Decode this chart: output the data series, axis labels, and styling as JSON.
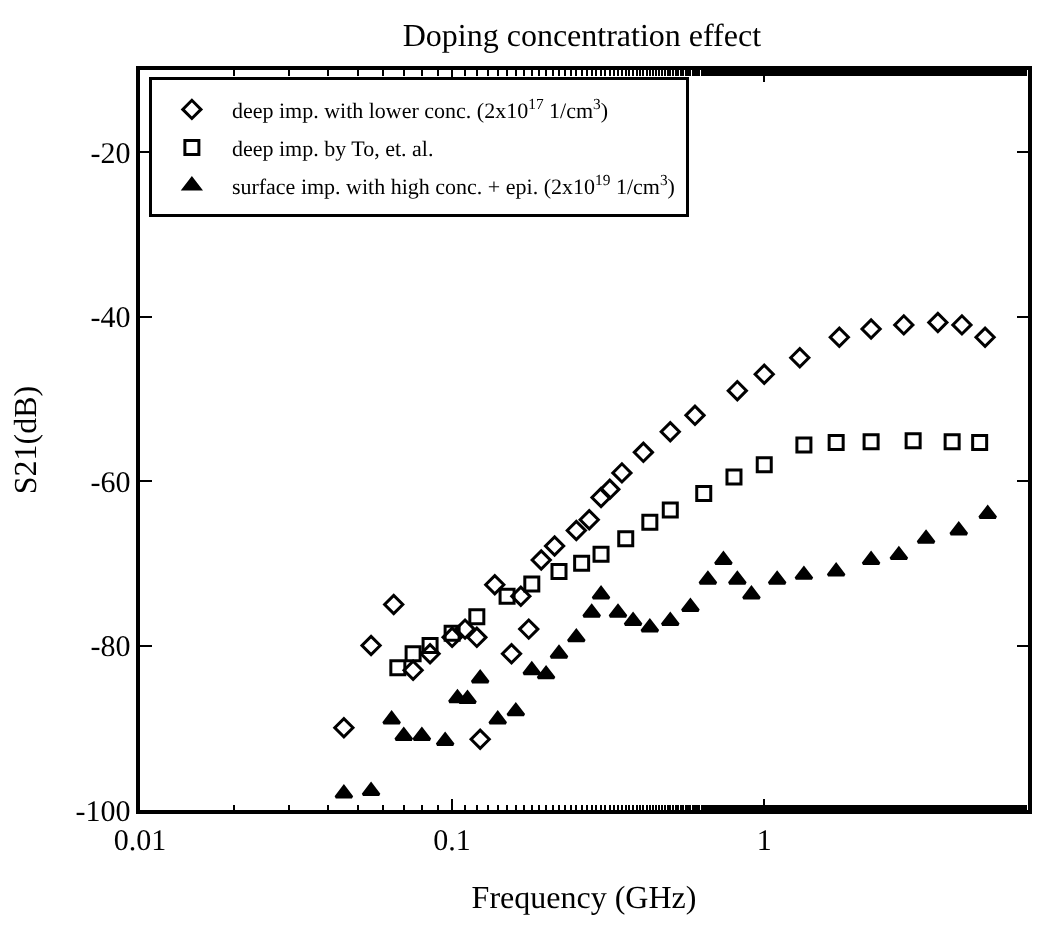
{
  "chart_data": {
    "type": "scatter",
    "title": "Doping concentration effect",
    "xlabel": "Frequency (GHz)",
    "ylabel": "S21(dB)",
    "log": "x",
    "xlim": [
      0.01,
      7
    ],
    "xticks": [
      0.01,
      0.1,
      1
    ],
    "ylim": [
      -100,
      -10
    ],
    "yticks": [
      -100,
      -80,
      -60,
      -40,
      -20
    ],
    "legend": "top left",
    "series": [
      {
        "name": "deep imp. with lower conc. (2x10$^{17}$ 1/cm$^{3}$)",
        "color": "#000000",
        "marker": "diamond",
        "x": [
          0.045,
          0.055,
          0.065,
          0.075,
          0.085,
          0.1,
          0.11,
          0.12,
          0.123,
          0.137,
          0.155,
          0.166,
          0.176,
          0.193,
          0.213,
          0.25,
          0.275,
          0.3,
          0.32,
          0.35,
          0.41,
          0.5,
          0.6,
          0.82,
          1.0,
          1.3,
          1.74,
          2.2,
          2.8,
          3.6,
          4.3,
          5.1
        ],
        "values": [
          -90,
          -80,
          -75,
          -83,
          -81,
          -79,
          -78,
          -79,
          -91.4,
          -72.6,
          -81,
          -74,
          -78,
          -69.6,
          -67.9,
          -66,
          -64.7,
          -62,
          -61,
          -59,
          -56.5,
          -54,
          -52,
          -49,
          -47,
          -45,
          -42.5,
          -41.5,
          -41,
          -40.7,
          -41,
          -42.5
        ]
      },
      {
        "name": "deep imp. by To, et. al.",
        "color": "#000000",
        "marker": "square",
        "x": [
          0.067,
          0.075,
          0.085,
          0.1,
          0.12,
          0.15,
          0.18,
          0.22,
          0.26,
          0.3,
          0.36,
          0.43,
          0.5,
          0.64,
          0.8,
          1.0,
          1.34,
          1.7,
          2.2,
          3.0,
          4.0,
          4.9
        ],
        "values": [
          -82.7,
          -81,
          -80,
          -78.5,
          -76.5,
          -74,
          -72.5,
          -71,
          -70,
          -68.9,
          -67,
          -65,
          -63.5,
          -61.5,
          -59.5,
          -58,
          -55.6,
          -55.3,
          -55.2,
          -55.1,
          -55.2,
          -55.3
        ]
      },
      {
        "name": "surface imp. with high conc. + epi. (2x10$^{19}$ 1/cm$^{3}$)",
        "color": "#000000",
        "marker": "triangle",
        "x": [
          0.045,
          0.055,
          0.064,
          0.07,
          0.08,
          0.095,
          0.104,
          0.112,
          0.123,
          0.14,
          0.16,
          0.18,
          0.2,
          0.22,
          0.25,
          0.28,
          0.3,
          0.34,
          0.38,
          0.43,
          0.5,
          0.58,
          0.66,
          0.74,
          0.82,
          0.91,
          1.1,
          1.34,
          1.7,
          2.2,
          2.7,
          3.3,
          4.2,
          5.2
        ],
        "values": [
          -98,
          -97.7,
          -89,
          -91,
          -91,
          -91.6,
          -86.4,
          -86.5,
          -84,
          -89,
          -88,
          -83,
          -83.5,
          -81,
          -79,
          -76,
          -73.8,
          -76,
          -77,
          -77.8,
          -77,
          -75.3,
          -72,
          -69.6,
          -72,
          -73.8,
          -72,
          -71.4,
          -71,
          -69.6,
          -69,
          -67,
          -66,
          -64
        ]
      }
    ]
  }
}
